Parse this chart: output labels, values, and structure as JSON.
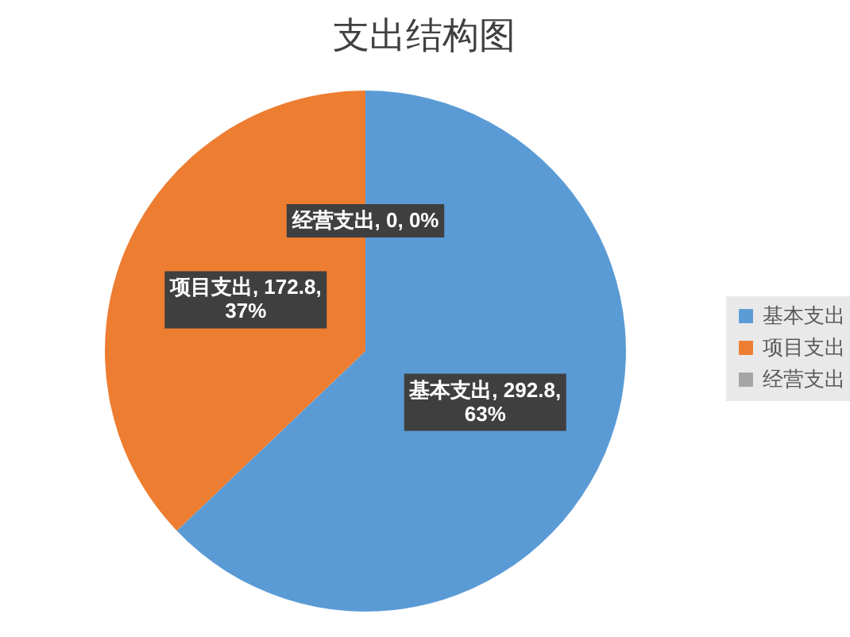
{
  "chart_data": {
    "type": "pie",
    "title": "支出结构图",
    "categories": [
      "基本支出",
      "项目支出",
      "经营支出"
    ],
    "values": [
      292.8,
      172.8,
      0
    ],
    "colors": [
      "#5b9bd5",
      "#ed7d31",
      "#a5a5a5"
    ],
    "value_labels": [
      "基本支出, 292.8, 63%",
      "项目支出, 172.8, 37%",
      "经营支出, 0, 0%"
    ],
    "legend": "right"
  }
}
